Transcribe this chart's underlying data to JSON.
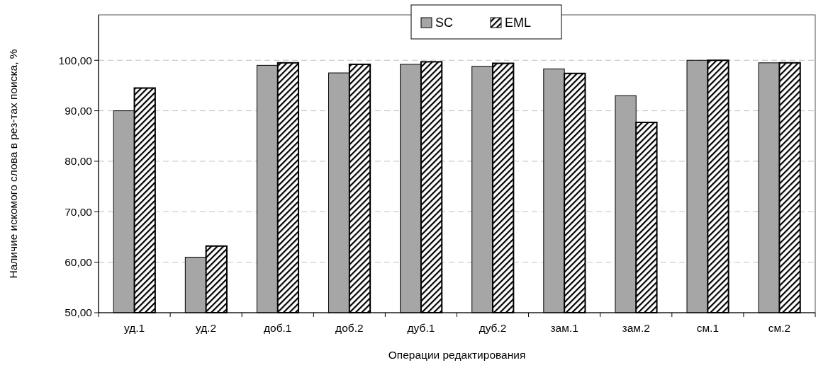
{
  "chart_data": {
    "type": "bar",
    "xlabel": "Операции редактирования",
    "ylabel": "Наличие искомого слова в рез-тах поиска, %",
    "categories": [
      "уд.1",
      "уд.2",
      "доб.1",
      "доб.2",
      "дуб.1",
      "дуб.2",
      "зам.1",
      "зам.2",
      "см.1",
      "см.2"
    ],
    "series": [
      {
        "name": "SC",
        "color": "#a6a6a6",
        "values": [
          90,
          61,
          99,
          97.5,
          99.2,
          98.8,
          98.3,
          93,
          100,
          99.5
        ]
      },
      {
        "name": "EML",
        "color": "#000000",
        "values": [
          94.5,
          63.2,
          99.5,
          99.2,
          99.7,
          99.4,
          97.4,
          87.7,
          100,
          99.5
        ]
      }
    ],
    "ylim": [
      50,
      109
    ],
    "yticks": [
      {
        "value": 50,
        "label": "50,00"
      },
      {
        "value": 60,
        "label": "60,00"
      },
      {
        "value": 70,
        "label": "70,00"
      },
      {
        "value": 80,
        "label": "80,00"
      },
      {
        "value": 90,
        "label": "90,00"
      },
      {
        "value": 100,
        "label": "100,00"
      }
    ],
    "grid": "y",
    "legend": "top"
  }
}
